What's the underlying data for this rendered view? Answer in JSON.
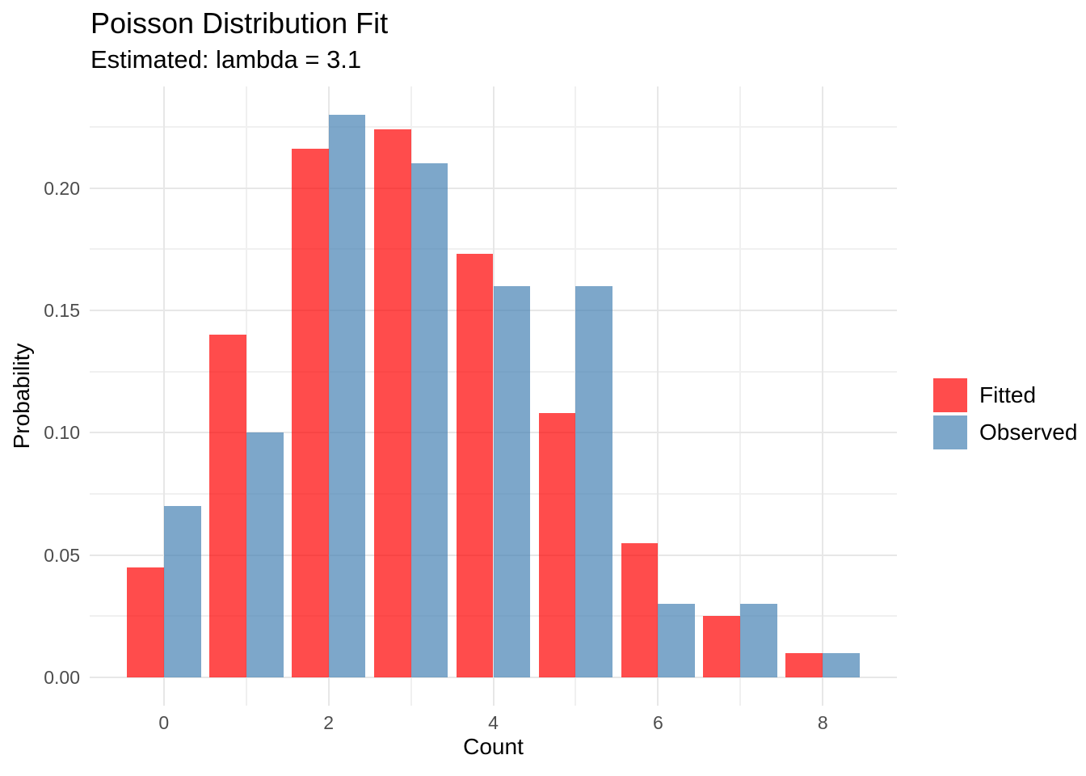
{
  "chart_data": {
    "type": "bar",
    "bar_mode": "dodge",
    "title": "Poisson Distribution Fit",
    "subtitle": "Estimated: lambda = 3.1",
    "xlabel": "Count",
    "ylabel": "Probability",
    "categories": [
      0,
      1,
      2,
      3,
      4,
      5,
      6,
      7,
      8
    ],
    "series": [
      {
        "name": "Fitted",
        "color": "#ff4d4d",
        "fill": "rgba(255,0,0,0.7)",
        "values": [
          0.045,
          0.14,
          0.216,
          0.224,
          0.173,
          0.108,
          0.055,
          0.025,
          0.01
        ]
      },
      {
        "name": "Observed",
        "color": "#7da7ca",
        "fill": "rgba(70,130,180,0.7)",
        "values": [
          0.07,
          0.1,
          0.23,
          0.21,
          0.16,
          0.16,
          0.03,
          0.03,
          0.01
        ]
      }
    ],
    "x_ticks": [
      0,
      2,
      4,
      6,
      8
    ],
    "x_tick_labels": [
      "0",
      "2",
      "4",
      "6",
      "8"
    ],
    "x_minor_ticks": [
      1,
      3,
      5,
      7
    ],
    "y_ticks": [
      0.0,
      0.05,
      0.1,
      0.15,
      0.2
    ],
    "y_tick_labels": [
      "0.00",
      "0.05",
      "0.10",
      "0.15",
      "0.20"
    ],
    "y_minor_ticks": [
      0.025,
      0.075,
      0.125,
      0.175,
      0.225
    ],
    "xlim": [
      -0.9,
      8.9
    ],
    "ylim": [
      -0.0115,
      0.2415
    ],
    "bar_half_width": 0.45,
    "grid": true,
    "legend_position": "right",
    "legend_title": ""
  },
  "colors": {
    "background": "#ffffff",
    "grid_major": "#e7e7e7",
    "grid_minor": "#f0f0f0",
    "tick_label": "#4d4d4d",
    "text": "#000000",
    "fitted_bar": "#ff4d4d",
    "observed_bar": "#7da7ca"
  }
}
